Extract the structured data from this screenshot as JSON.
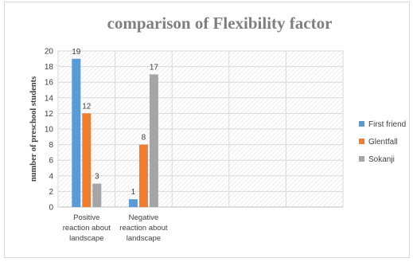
{
  "chart_data": {
    "type": "bar",
    "title": "comparison of Flexibility factor",
    "ylabel": "number of preschool students",
    "xlabel": "",
    "ylim": [
      0,
      20
    ],
    "ytick_step": 2,
    "grid": true,
    "legend_position": "right",
    "categories": [
      [
        "Positive",
        "reaction about",
        "landscape"
      ],
      [
        "Negative",
        "reaction about",
        "landscape"
      ]
    ],
    "empty_slots": 3,
    "series": [
      {
        "name": "First friend",
        "values": [
          19,
          1
        ],
        "color": "#5b9bd5"
      },
      {
        "name": "Glentfall",
        "values": [
          12,
          8
        ],
        "color": "#ed7d31"
      },
      {
        "name": "Sokanji",
        "values": [
          3,
          17
        ],
        "color": "#a5a5a5"
      }
    ]
  }
}
